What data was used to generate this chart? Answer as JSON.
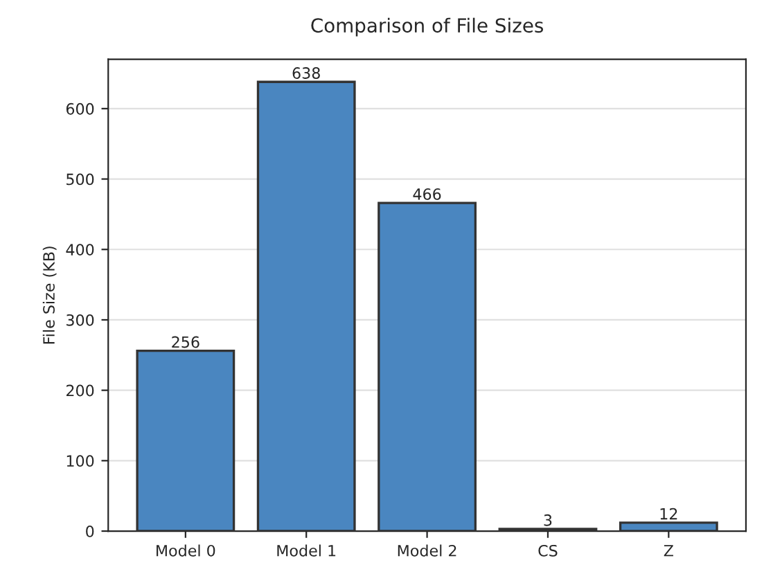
{
  "chart_data": {
    "type": "bar",
    "title": "Comparison of File Sizes",
    "ylabel": "File Size (KB)",
    "categories": [
      "Model 0",
      "Model 1",
      "Model 2",
      "CS",
      "Z"
    ],
    "values": [
      256,
      638,
      466,
      3,
      12
    ],
    "color": "#4a86c0",
    "ylim": [
      0,
      670
    ],
    "yticks": [
      0,
      100,
      200,
      300,
      400,
      500,
      600
    ],
    "grid": "y",
    "data_labels": true
  }
}
